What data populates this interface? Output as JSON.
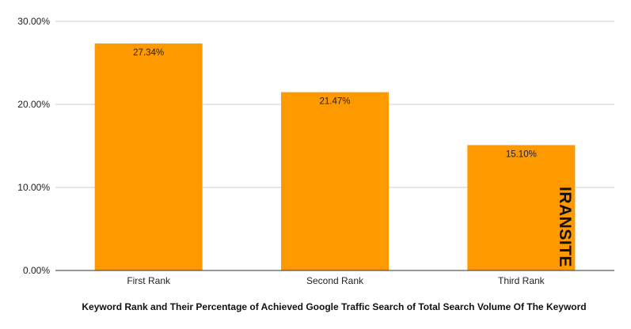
{
  "chart_data": {
    "type": "bar",
    "categories": [
      "First Rank",
      "Second Rank",
      "Third Rank"
    ],
    "values": [
      27.34,
      21.47,
      15.1
    ],
    "data_labels": [
      "27.34%",
      "21.47%",
      "15.10%"
    ],
    "title": "",
    "xlabel": "Keyword Rank and Their Percentage of Achieved Google Traffic Search of Total Search Volume Of The Keyword",
    "ylabel": "",
    "ylim": [
      0,
      30
    ],
    "yticks": [
      0,
      10,
      20,
      30
    ],
    "ytick_labels": [
      "0.00%",
      "10.00%",
      "20.00%",
      "30.00%"
    ],
    "grid": true,
    "legend": "none",
    "bar_color": "#ff9900",
    "grid_color": "#cccccc",
    "axis_color": "#333333"
  },
  "watermark": {
    "text": "IRANSITE"
  }
}
